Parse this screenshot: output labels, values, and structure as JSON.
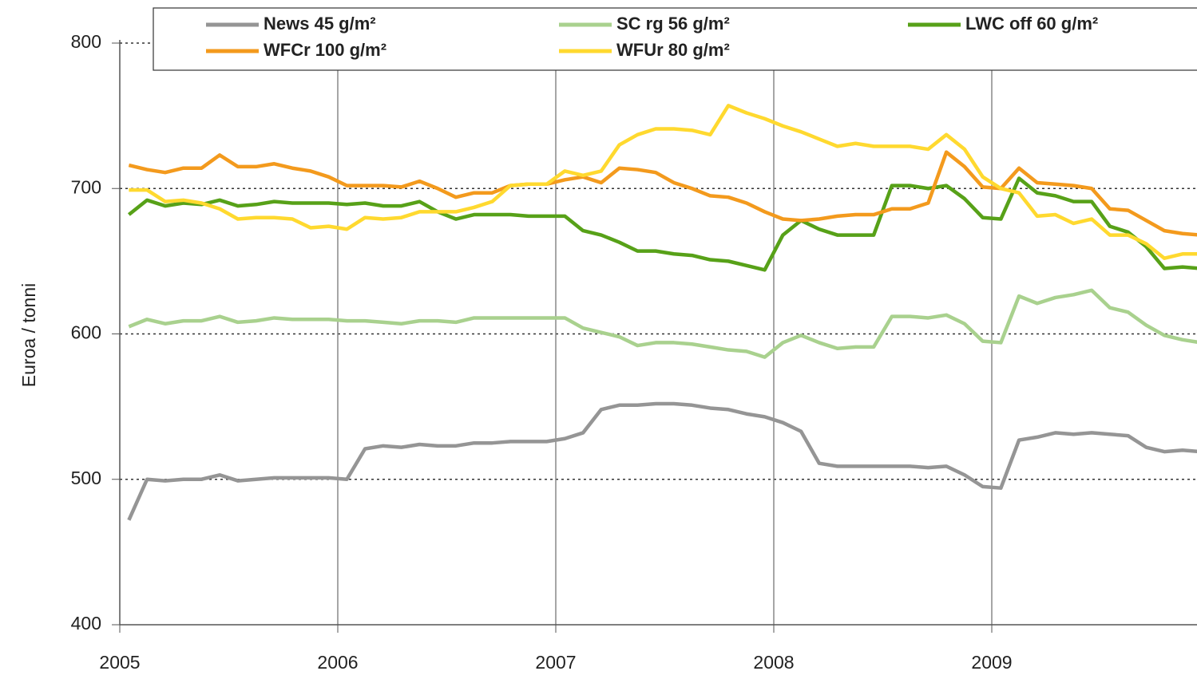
{
  "chart_data": {
    "type": "line",
    "y_label": "Euroa / tonni",
    "categories": [
      "2005",
      null,
      null,
      null,
      null,
      null,
      null,
      null,
      null,
      null,
      null,
      null,
      "2006",
      null,
      null,
      null,
      null,
      null,
      null,
      null,
      null,
      null,
      null,
      null,
      "2007",
      null,
      null,
      null,
      null,
      null,
      null,
      null,
      null,
      null,
      null,
      null,
      "2008",
      null,
      null,
      null,
      null,
      null,
      null,
      null,
      null,
      null,
      null,
      null,
      "2009",
      null,
      null,
      null,
      null,
      null,
      null,
      null,
      null,
      null,
      null,
      null
    ],
    "series": [
      {
        "name": "News 45 g/m²",
        "color": "#959595",
        "values": [
          472,
          500,
          499,
          500,
          500,
          503,
          499,
          500,
          501,
          501,
          501,
          501,
          500,
          521,
          523,
          522,
          524,
          523,
          523,
          525,
          525,
          526,
          526,
          526,
          528,
          532,
          548,
          551,
          551,
          552,
          552,
          551,
          549,
          548,
          545,
          543,
          539,
          533,
          511,
          509,
          509,
          509,
          509,
          509,
          508,
          509,
          503,
          495,
          494,
          527,
          529,
          532,
          531,
          532,
          531,
          530,
          522,
          519,
          520,
          519
        ]
      },
      {
        "name": "SC rg 56 g/m²",
        "color": "#a9d18e",
        "values": [
          605,
          610,
          607,
          609,
          609,
          612,
          608,
          609,
          611,
          610,
          610,
          610,
          609,
          609,
          608,
          607,
          609,
          609,
          608,
          611,
          611,
          611,
          611,
          611,
          611,
          604,
          601,
          598,
          592,
          594,
          594,
          593,
          591,
          589,
          588,
          584,
          594,
          599,
          594,
          590,
          591,
          591,
          612,
          612,
          611,
          613,
          607,
          595,
          594,
          626,
          621,
          625,
          627,
          630,
          618,
          615,
          606,
          599,
          596,
          594
        ]
      },
      {
        "name": "LWC off 60 g/m²",
        "color": "#57a118",
        "values": [
          682,
          692,
          688,
          690,
          689,
          692,
          688,
          689,
          691,
          690,
          690,
          690,
          689,
          690,
          688,
          688,
          691,
          684,
          679,
          682,
          682,
          682,
          681,
          681,
          681,
          671,
          668,
          663,
          657,
          657,
          655,
          654,
          651,
          650,
          647,
          644,
          668,
          678,
          672,
          668,
          668,
          668,
          702,
          702,
          700,
          702,
          693,
          680,
          679,
          707,
          697,
          695,
          691,
          691,
          674,
          670,
          660,
          645,
          646,
          645
        ]
      },
      {
        "name": "WFCr 100 g/m²",
        "color": "#f39a1d",
        "values": [
          716,
          713,
          711,
          714,
          714,
          723,
          715,
          715,
          717,
          714,
          712,
          708,
          702,
          702,
          702,
          701,
          705,
          700,
          694,
          697,
          697,
          702,
          703,
          703,
          706,
          708,
          704,
          714,
          713,
          711,
          704,
          700,
          695,
          694,
          690,
          684,
          679,
          678,
          679,
          681,
          682,
          682,
          686,
          686,
          690,
          725,
          715,
          701,
          700,
          714,
          704,
          703,
          702,
          700,
          686,
          685,
          678,
          671,
          669,
          668
        ]
      },
      {
        "name": "WFUr 80 g/m²",
        "color": "#ffd92f",
        "values": [
          699,
          699,
          691,
          692,
          690,
          686,
          679,
          680,
          680,
          679,
          673,
          674,
          672,
          680,
          679,
          680,
          684,
          684,
          684,
          687,
          691,
          702,
          703,
          703,
          712,
          709,
          712,
          730,
          737,
          741,
          741,
          740,
          737,
          757,
          752,
          748,
          743,
          739,
          734,
          729,
          731,
          729,
          729,
          729,
          727,
          737,
          727,
          708,
          700,
          697,
          681,
          682,
          676,
          679,
          668,
          668,
          662,
          652,
          655,
          655
        ]
      }
    ],
    "ylim": [
      400,
      800
    ],
    "yticks": [
      400,
      500,
      600,
      700,
      800
    ],
    "grid": true
  }
}
